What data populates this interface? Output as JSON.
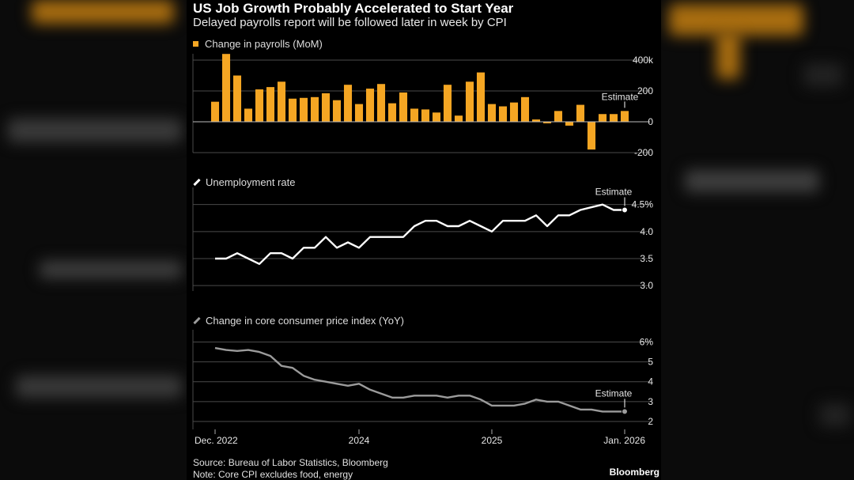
{
  "header": {
    "title": "US Job Growth Probably Accelerated to Start Year",
    "subtitle": "Delayed payrolls report will be followed later in week by CPI"
  },
  "footer": {
    "source": "Source: Bureau of Labor Statistics, Bloomberg",
    "note": "Note: Core CPI excludes food, energy",
    "brand": "Bloomberg"
  },
  "colors": {
    "payrolls": "#f5a623",
    "unemployment": "#ffffff",
    "cpi": "#9b9b9b",
    "grid": "#4a4a4a"
  },
  "chart_data": [
    {
      "type": "bar",
      "title": "Change in payrolls (MoM)",
      "legend": "Change in payrolls (MoM)",
      "ylim": [
        -200,
        400
      ],
      "yticks": [
        400,
        200,
        0,
        -200
      ],
      "ytick_labels": [
        "400k",
        "200",
        "0",
        "-200"
      ],
      "values": [
        130,
        440,
        300,
        85,
        210,
        225,
        260,
        150,
        155,
        160,
        185,
        140,
        240,
        115,
        215,
        245,
        120,
        190,
        85,
        80,
        60,
        240,
        40,
        260,
        320,
        115,
        100,
        125,
        160,
        15,
        -10,
        70,
        -25,
        110,
        -180,
        50,
        50,
        70
      ],
      "annotation": "Estimate"
    },
    {
      "type": "line",
      "title": "Unemployment rate",
      "legend": "Unemployment rate",
      "ylim": [
        2.9,
        4.7
      ],
      "yticks": [
        4.5,
        4.0,
        3.5,
        3.0
      ],
      "ytick_labels": [
        "4.5%",
        "4.0",
        "3.5",
        "3.0"
      ],
      "values": [
        3.5,
        3.5,
        3.6,
        3.5,
        3.4,
        3.6,
        3.6,
        3.5,
        3.7,
        3.7,
        3.9,
        3.7,
        3.8,
        3.7,
        3.9,
        3.9,
        3.9,
        3.9,
        4.1,
        4.2,
        4.2,
        4.1,
        4.1,
        4.2,
        4.1,
        4.0,
        4.2,
        4.2,
        4.2,
        4.3,
        4.1,
        4.3,
        4.3,
        4.4,
        4.45,
        4.5,
        4.4,
        4.4
      ],
      "annotation": "Estimate"
    },
    {
      "type": "line",
      "title": "Change in core consumer price index (YoY)",
      "legend": "Change in core consumer price index (YoY)",
      "ylim": [
        1.6,
        6.3
      ],
      "yticks": [
        6,
        5,
        4,
        3,
        2
      ],
      "ytick_labels": [
        "6%",
        "5",
        "4",
        "3",
        "2"
      ],
      "values": [
        5.7,
        5.6,
        5.55,
        5.6,
        5.5,
        5.3,
        4.8,
        4.7,
        4.3,
        4.1,
        4.0,
        3.9,
        3.8,
        3.9,
        3.6,
        3.4,
        3.2,
        3.2,
        3.3,
        3.3,
        3.3,
        3.2,
        3.3,
        3.3,
        3.1,
        2.8,
        2.8,
        2.8,
        2.9,
        3.1,
        3.0,
        3.0,
        2.8,
        2.6,
        2.6,
        2.5,
        2.5,
        2.5
      ],
      "xlabels": [
        "Dec. 2022",
        "2024",
        "2025",
        "Jan. 2026"
      ],
      "annotation": "Estimate"
    }
  ]
}
